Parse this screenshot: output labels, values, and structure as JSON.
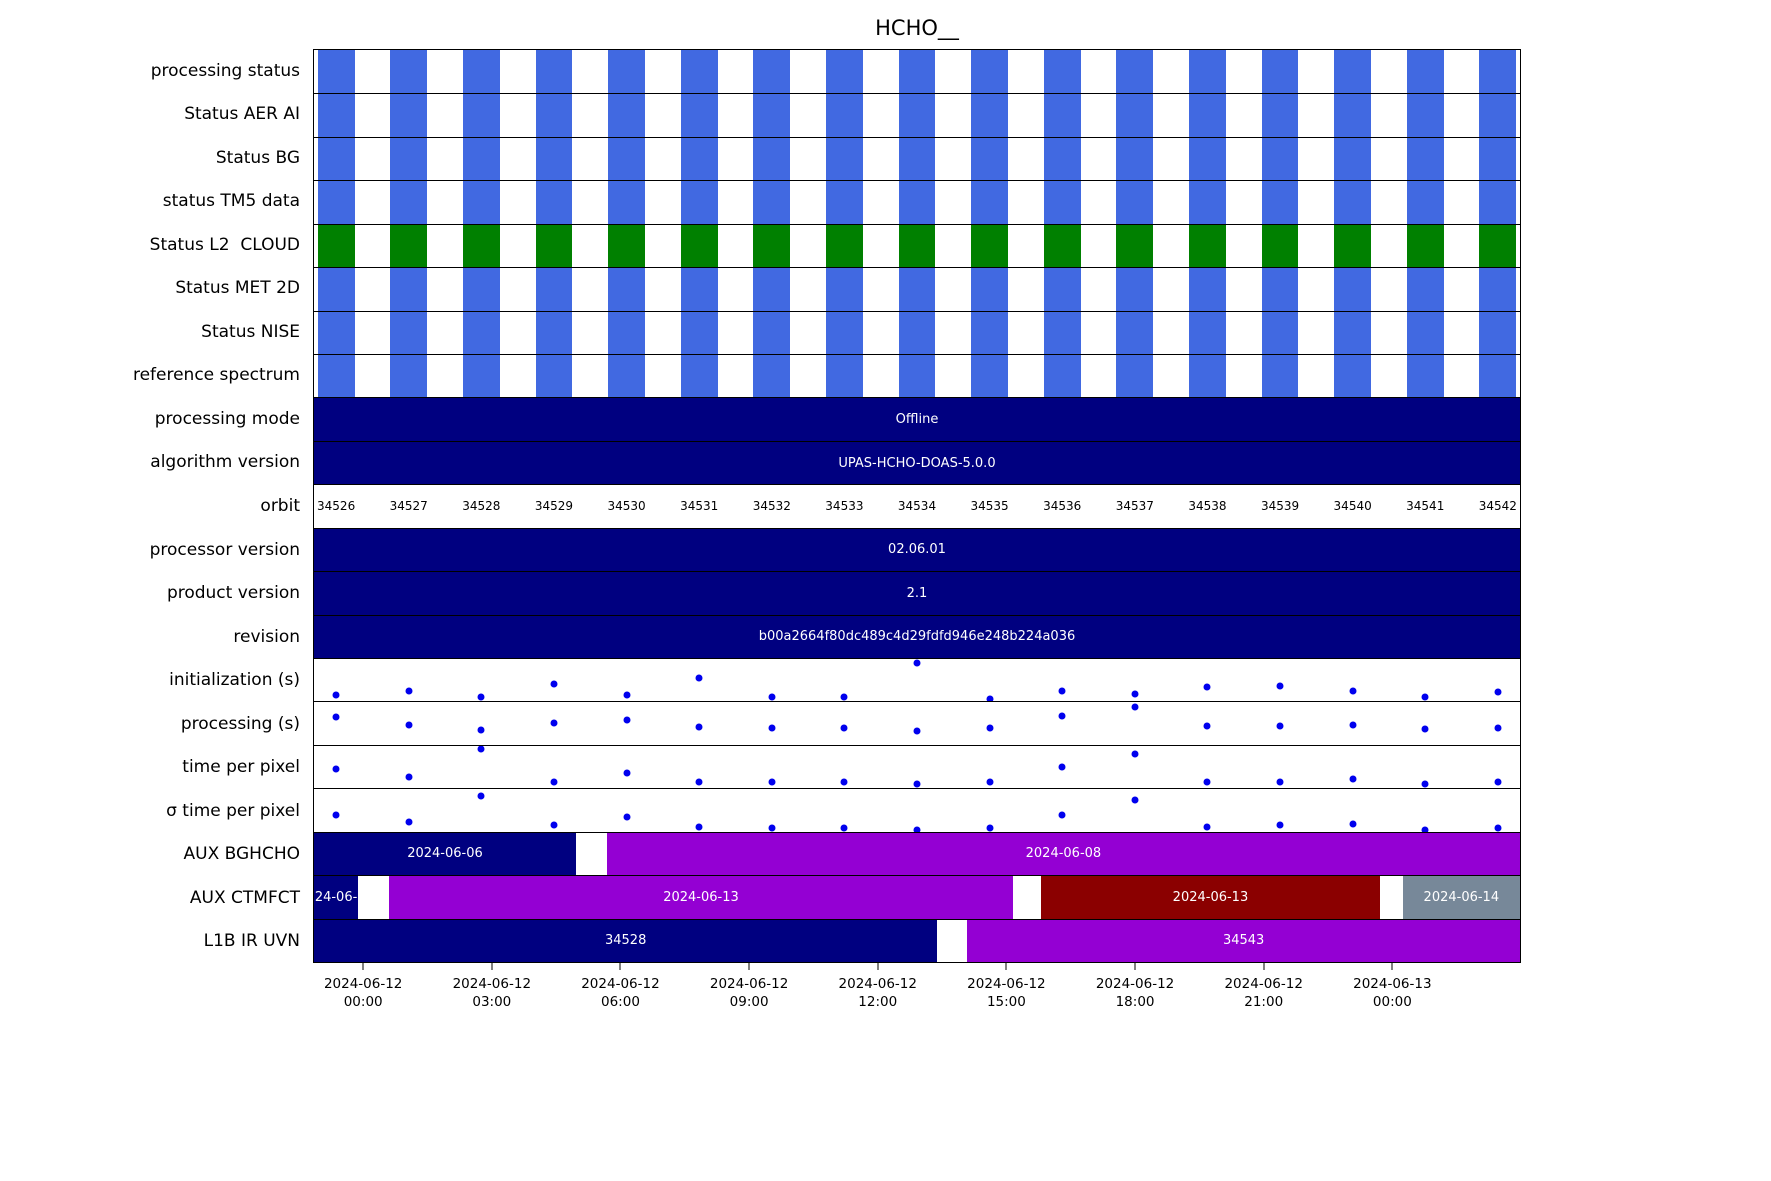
{
  "chart_data": {
    "type": "timeline-status",
    "title": "HCHO__",
    "time_axis": {
      "range_hours": [
        -1.17,
        27.0
      ],
      "ticks": [
        {
          "t": 0,
          "date": "2024-06-12",
          "time": "00:00"
        },
        {
          "t": 3,
          "date": "2024-06-12",
          "time": "03:00"
        },
        {
          "t": 6,
          "date": "2024-06-12",
          "time": "06:00"
        },
        {
          "t": 9,
          "date": "2024-06-12",
          "time": "09:00"
        },
        {
          "t": 12,
          "date": "2024-06-12",
          "time": "12:00"
        },
        {
          "t": 15,
          "date": "2024-06-12",
          "time": "15:00"
        },
        {
          "t": 18,
          "date": "2024-06-12",
          "time": "18:00"
        },
        {
          "t": 21,
          "date": "2024-06-12",
          "time": "21:00"
        },
        {
          "t": 24,
          "date": "2024-06-13",
          "time": "00:00"
        }
      ]
    },
    "orbits": {
      "numbers": [
        34526,
        34527,
        34528,
        34529,
        34530,
        34531,
        34532,
        34533,
        34534,
        34535,
        34536,
        34537,
        34538,
        34539,
        34540,
        34541,
        34542
      ],
      "first_center_hours": -0.653,
      "spacing_hours": 1.696,
      "bar_width_hours": 0.86
    },
    "colors": {
      "status_blue": "#4169E1",
      "status_green": "#008000",
      "navy": "#000080",
      "purple": "#9400D3",
      "darkred": "#8B0000",
      "gray": "#778899",
      "dot_blue": "#0000EE"
    },
    "rows": [
      {
        "label": "processing status",
        "kind": "orbit_bars",
        "color_key": "status_blue"
      },
      {
        "label": "Status AER AI",
        "kind": "orbit_bars",
        "color_key": "status_blue"
      },
      {
        "label": "Status BG",
        "kind": "orbit_bars",
        "color_key": "status_blue"
      },
      {
        "label": "status TM5 data",
        "kind": "orbit_bars",
        "color_key": "status_blue"
      },
      {
        "label": "Status L2  CLOUD",
        "kind": "orbit_bars",
        "color_key": "status_green"
      },
      {
        "label": "Status MET 2D",
        "kind": "orbit_bars",
        "color_key": "status_blue"
      },
      {
        "label": "Status NISE",
        "kind": "orbit_bars",
        "color_key": "status_blue"
      },
      {
        "label": "reference spectrum",
        "kind": "orbit_bars",
        "color_key": "status_blue"
      },
      {
        "label": "processing mode",
        "kind": "full_bar",
        "color_key": "navy",
        "text": "Offline"
      },
      {
        "label": "algorithm version",
        "kind": "full_bar",
        "color_key": "navy",
        "text": "UPAS-HCHO-DOAS-5.0.0"
      },
      {
        "label": "orbit",
        "kind": "orbit_labels"
      },
      {
        "label": "processor version",
        "kind": "full_bar",
        "color_key": "navy",
        "text": "02.06.01"
      },
      {
        "label": "product version",
        "kind": "full_bar",
        "color_key": "navy",
        "text": "2.1"
      },
      {
        "label": "revision",
        "kind": "full_bar",
        "color_key": "navy",
        "text": "b00a2664f80dc489c4d29fdfd946e248b224a036"
      },
      {
        "label": "initialization (s)",
        "kind": "scatter",
        "rel_values": [
          0.16,
          0.24,
          0.1,
          0.42,
          0.16,
          0.55,
          0.1,
          0.1,
          0.9,
          0.06,
          0.25,
          0.18,
          0.35,
          0.37,
          0.24,
          0.1,
          0.22
        ]
      },
      {
        "label": "processing (s)",
        "kind": "scatter",
        "rel_values": [
          0.65,
          0.47,
          0.35,
          0.52,
          0.58,
          0.42,
          0.4,
          0.4,
          0.33,
          0.4,
          0.68,
          0.9,
          0.45,
          0.45,
          0.47,
          0.38,
          0.4
        ]
      },
      {
        "label": "time per pixel",
        "kind": "scatter",
        "rel_values": [
          0.45,
          0.26,
          0.93,
          0.15,
          0.36,
          0.15,
          0.15,
          0.15,
          0.1,
          0.15,
          0.5,
          0.8,
          0.15,
          0.15,
          0.22,
          0.1,
          0.15
        ]
      },
      {
        "label": "σ time per pixel",
        "kind": "scatter",
        "rel_values": [
          0.4,
          0.23,
          0.85,
          0.15,
          0.35,
          0.1,
          0.08,
          0.08,
          0.05,
          0.08,
          0.4,
          0.75,
          0.12,
          0.15,
          0.18,
          0.05,
          0.08
        ]
      },
      {
        "label": "AUX BGHCHO",
        "kind": "segments",
        "segments": [
          {
            "start": -1.17,
            "end": 4.95,
            "color_key": "navy",
            "text": "2024-06-06"
          },
          {
            "start": 5.67,
            "end": 27.0,
            "color_key": "purple",
            "text": "2024-06-08"
          }
        ]
      },
      {
        "label": "AUX CTMFCT",
        "kind": "segments",
        "segments": [
          {
            "start": -1.17,
            "end": -0.14,
            "color_key": "navy",
            "text": "24-06-"
          },
          {
            "start": 0.58,
            "end": 15.16,
            "color_key": "purple",
            "text": "2024-06-13"
          },
          {
            "start": 15.82,
            "end": 23.72,
            "color_key": "darkred",
            "text": "2024-06-13"
          },
          {
            "start": 24.26,
            "end": 27.0,
            "color_key": "gray",
            "text": "2024-06-14"
          }
        ]
      },
      {
        "label": "L1B IR UVN",
        "kind": "segments",
        "segments": [
          {
            "start": -1.17,
            "end": 13.39,
            "color_key": "navy",
            "text": "34528"
          },
          {
            "start": 14.09,
            "end": 27.0,
            "color_key": "purple",
            "text": "34543"
          }
        ]
      }
    ]
  }
}
